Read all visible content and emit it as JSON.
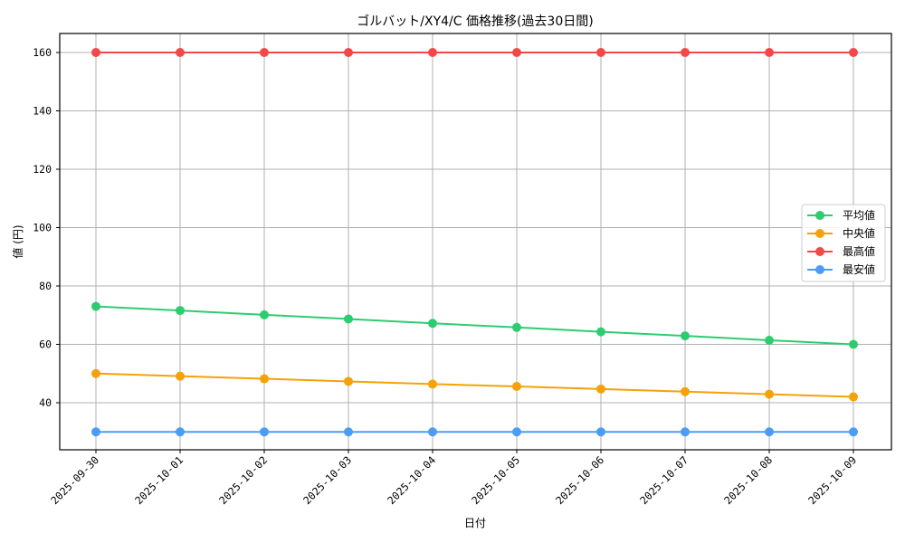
{
  "chart_data": {
    "type": "line",
    "title": "ゴルバット/XY4/C 価格推移(過去30日間)",
    "xlabel": "日付",
    "ylabel": "値 (円)",
    "categories": [
      "2025-09-30",
      "2025-10-01",
      "2025-10-02",
      "2025-10-03",
      "2025-10-04",
      "2025-10-05",
      "2025-10-06",
      "2025-10-07",
      "2025-10-08",
      "2025-10-09"
    ],
    "series": [
      {
        "name": "平均値",
        "color": "#2ecc71",
        "values": [
          73.0,
          71.6,
          70.1,
          68.7,
          67.2,
          65.8,
          64.3,
          62.9,
          61.4,
          60.0
        ]
      },
      {
        "name": "中央値",
        "color": "#f5a10a",
        "values": [
          50.0,
          49.1,
          48.2,
          47.3,
          46.4,
          45.6,
          44.7,
          43.8,
          42.9,
          42.0
        ]
      },
      {
        "name": "最高値",
        "color": "#f44848",
        "values": [
          160,
          160,
          160,
          160,
          160,
          160,
          160,
          160,
          160,
          160
        ]
      },
      {
        "name": "最安値",
        "color": "#4b9cf5",
        "values": [
          30,
          30,
          30,
          30,
          30,
          30,
          30,
          30,
          30,
          30
        ]
      }
    ],
    "yticks": [
      40,
      60,
      80,
      100,
      120,
      140,
      160
    ],
    "ylim": [
      23.5,
      166.5
    ],
    "grid": true,
    "legend_position": "center right"
  }
}
